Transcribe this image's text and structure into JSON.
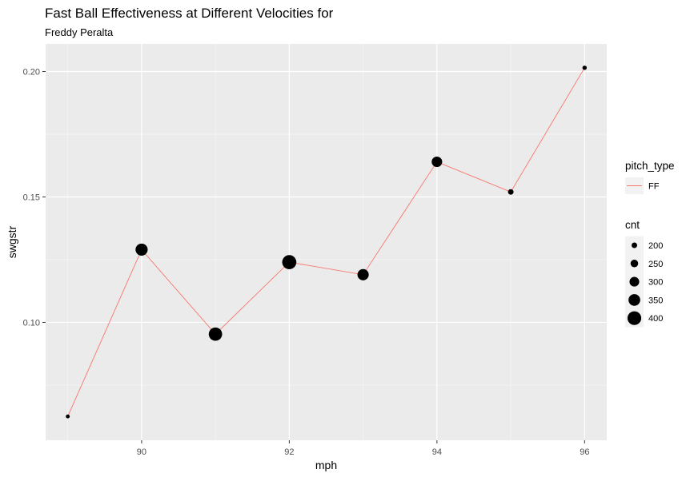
{
  "chart_data": {
    "type": "line",
    "title": "Fast Ball Effectiveness at Different Velocities for",
    "subtitle": "Freddy Peralta",
    "xlabel": "mph",
    "ylabel": "swgstr",
    "xlim": [
      88.7,
      96.3
    ],
    "ylim": [
      0.053,
      0.211
    ],
    "x_ticks": [
      90,
      92,
      94,
      96
    ],
    "x_tick_labels": [
      "90",
      "92",
      "94",
      "96"
    ],
    "y_ticks": [
      0.1,
      0.15,
      0.2
    ],
    "y_tick_labels": [
      "0.10",
      "0.15",
      "0.20"
    ],
    "grid": true,
    "background": "#ebebeb",
    "series": [
      {
        "name": "FF",
        "color": "#f8766d",
        "x": [
          89,
          90,
          91,
          92,
          93,
          94,
          95,
          96
        ],
        "y": [
          0.0625,
          0.129,
          0.0953,
          0.124,
          0.119,
          0.164,
          0.152,
          0.2015
        ],
        "cnt": [
          160,
          360,
          390,
          410,
          340,
          320,
          200,
          170
        ]
      }
    ],
    "legend": {
      "position": "right",
      "color_legend": {
        "title": "pitch_type",
        "entries": [
          "FF"
        ]
      },
      "size_legend": {
        "title": "cnt",
        "values": [
          200,
          250,
          300,
          350,
          400
        ],
        "labels": [
          "200",
          "250",
          "300",
          "350",
          "400"
        ]
      }
    }
  }
}
